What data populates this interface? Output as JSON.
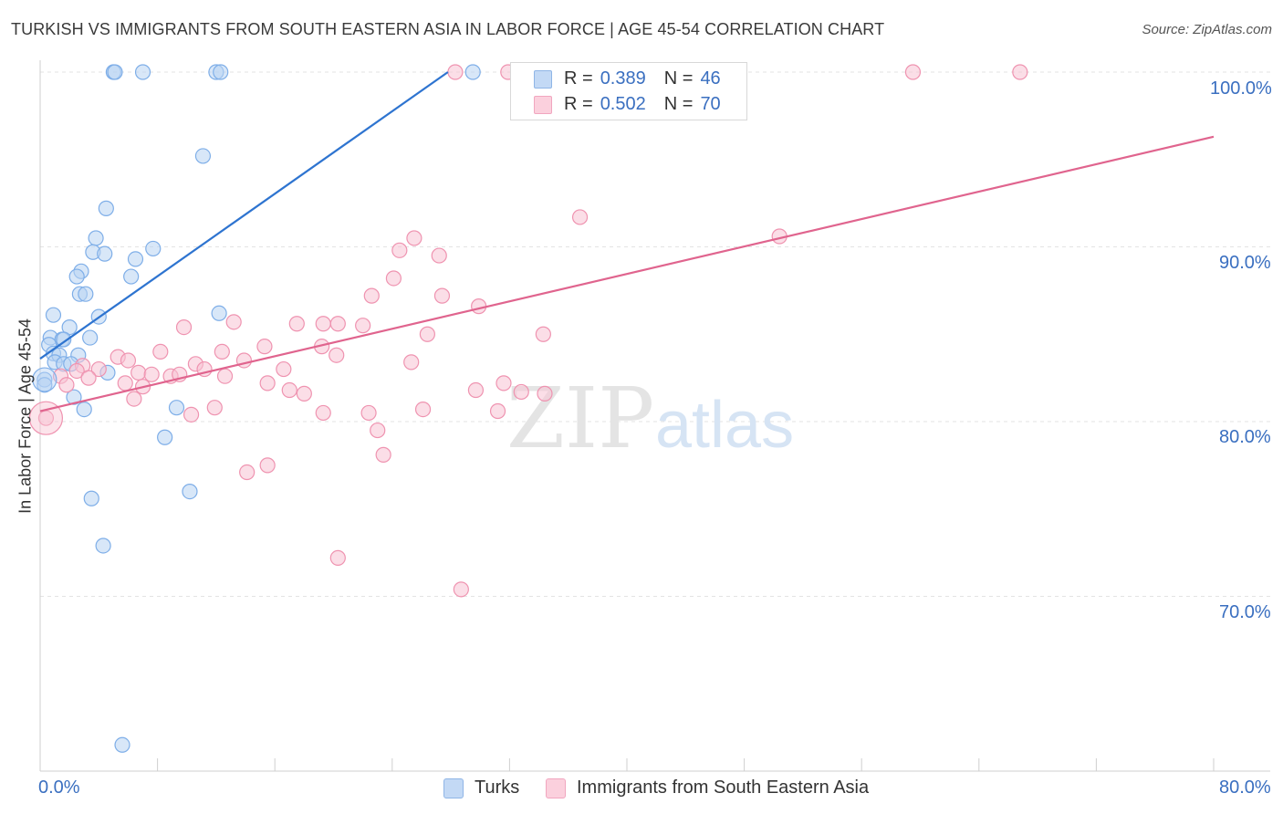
{
  "title": "TURKISH VS IMMIGRANTS FROM SOUTH EASTERN ASIA IN LABOR FORCE | AGE 45-54 CORRELATION CHART",
  "source": "Source: ZipAtlas.com",
  "watermark": {
    "zip": "ZIP",
    "atlas": "atlas"
  },
  "legend_top": [
    {
      "r_label": "R =",
      "r_value": "0.389",
      "n_label": "N =",
      "n_value": "46",
      "color": "#a8c8f0"
    },
    {
      "r_label": "R =",
      "r_value": "0.502",
      "n_label": "N =",
      "n_value": "70",
      "color": "#f7b6ca"
    }
  ],
  "chart_data": {
    "type": "scatter",
    "title": "TURKISH VS IMMIGRANTS FROM SOUTH EASTERN ASIA IN LABOR FORCE | AGE 45-54 CORRELATION CHART",
    "xlabel": "",
    "ylabel": "In Labor Force | Age 45-54",
    "xlim": [
      0,
      80
    ],
    "ylim": [
      60.5,
      101
    ],
    "x_tick_labels": [
      "0.0%",
      "80.0%"
    ],
    "y_ticks": [
      70,
      80,
      90,
      100
    ],
    "y_tick_labels": [
      "70.0%",
      "80.0%",
      "90.0%",
      "100.0%"
    ],
    "grid": true,
    "legend_position": "bottom",
    "series": [
      {
        "name": "Turks",
        "color": "#7eaee8",
        "fill": "#b8d3f3",
        "trend": {
          "x": [
            0,
            27.8
          ],
          "y": [
            83.6,
            100
          ]
        },
        "points": [
          [
            5.0,
            100
          ],
          [
            5.1,
            100
          ],
          [
            7.0,
            100
          ],
          [
            12.0,
            100
          ],
          [
            12.3,
            100
          ],
          [
            29.5,
            100
          ],
          [
            11.1,
            95.2
          ],
          [
            4.5,
            92.2
          ],
          [
            3.8,
            90.5
          ],
          [
            3.6,
            89.7
          ],
          [
            4.4,
            89.6
          ],
          [
            7.7,
            89.9
          ],
          [
            6.5,
            89.3
          ],
          [
            2.8,
            88.6
          ],
          [
            2.5,
            88.3
          ],
          [
            6.2,
            88.3
          ],
          [
            2.7,
            87.3
          ],
          [
            3.1,
            87.3
          ],
          [
            12.2,
            86.2
          ],
          [
            0.9,
            86.1
          ],
          [
            4.0,
            86.0
          ],
          [
            2.0,
            85.4
          ],
          [
            0.7,
            84.8
          ],
          [
            1.5,
            84.7
          ],
          [
            1.6,
            84.7
          ],
          [
            3.4,
            84.8
          ],
          [
            0.6,
            84.4
          ],
          [
            0.9,
            83.9
          ],
          [
            1.3,
            83.8
          ],
          [
            2.6,
            83.8
          ],
          [
            1.0,
            83.4
          ],
          [
            1.6,
            83.3
          ],
          [
            2.1,
            83.3
          ],
          [
            4.6,
            82.8
          ],
          [
            0.3,
            82.4
          ],
          [
            0.3,
            82.1
          ],
          [
            2.3,
            81.4
          ],
          [
            3.0,
            80.7
          ],
          [
            9.3,
            80.8
          ],
          [
            8.5,
            79.1
          ],
          [
            3.5,
            75.6
          ],
          [
            10.2,
            76.0
          ],
          [
            4.3,
            72.9
          ],
          [
            5.6,
            61.5
          ]
        ]
      },
      {
        "name": "Immigrants from South Eastern Asia",
        "color": "#ef93b0",
        "fill": "#f8c3d3",
        "trend": {
          "x": [
            0,
            80
          ],
          "y": [
            80.6,
            96.3
          ]
        },
        "points": [
          [
            28.3,
            100
          ],
          [
            31.9,
            100
          ],
          [
            59.5,
            100
          ],
          [
            66.8,
            100
          ],
          [
            36.8,
            91.7
          ],
          [
            50.4,
            90.6
          ],
          [
            25.5,
            90.5
          ],
          [
            24.5,
            89.8
          ],
          [
            27.2,
            89.5
          ],
          [
            24.1,
            88.2
          ],
          [
            22.6,
            87.2
          ],
          [
            27.4,
            87.2
          ],
          [
            29.9,
            86.6
          ],
          [
            13.2,
            85.7
          ],
          [
            17.5,
            85.6
          ],
          [
            19.3,
            85.6
          ],
          [
            20.3,
            85.6
          ],
          [
            22.0,
            85.5
          ],
          [
            9.8,
            85.4
          ],
          [
            26.4,
            85.0
          ],
          [
            34.3,
            85.0
          ],
          [
            15.3,
            84.3
          ],
          [
            19.2,
            84.3
          ],
          [
            8.2,
            84.0
          ],
          [
            12.4,
            84.0
          ],
          [
            20.2,
            83.8
          ],
          [
            5.3,
            83.7
          ],
          [
            13.9,
            83.5
          ],
          [
            6.0,
            83.5
          ],
          [
            25.3,
            83.4
          ],
          [
            10.6,
            83.3
          ],
          [
            2.9,
            83.2
          ],
          [
            4.0,
            83.0
          ],
          [
            11.2,
            83.0
          ],
          [
            16.6,
            83.0
          ],
          [
            2.5,
            82.9
          ],
          [
            6.7,
            82.8
          ],
          [
            7.6,
            82.7
          ],
          [
            8.9,
            82.6
          ],
          [
            9.5,
            82.7
          ],
          [
            12.6,
            82.6
          ],
          [
            1.4,
            82.6
          ],
          [
            3.3,
            82.5
          ],
          [
            5.8,
            82.2
          ],
          [
            15.5,
            82.2
          ],
          [
            1.8,
            82.1
          ],
          [
            7.0,
            82.0
          ],
          [
            17.0,
            81.8
          ],
          [
            18.0,
            81.6
          ],
          [
            29.7,
            81.8
          ],
          [
            31.6,
            82.2
          ],
          [
            34.4,
            81.6
          ],
          [
            32.8,
            81.7
          ],
          [
            6.4,
            81.3
          ],
          [
            11.9,
            80.8
          ],
          [
            10.3,
            80.4
          ],
          [
            19.3,
            80.5
          ],
          [
            22.4,
            80.5
          ],
          [
            26.1,
            80.7
          ],
          [
            31.2,
            80.6
          ],
          [
            0.4,
            80.2
          ],
          [
            23.0,
            79.5
          ],
          [
            23.4,
            78.1
          ],
          [
            15.5,
            77.5
          ],
          [
            14.1,
            77.1
          ],
          [
            20.3,
            72.2
          ],
          [
            28.7,
            70.4
          ]
        ]
      }
    ]
  }
}
